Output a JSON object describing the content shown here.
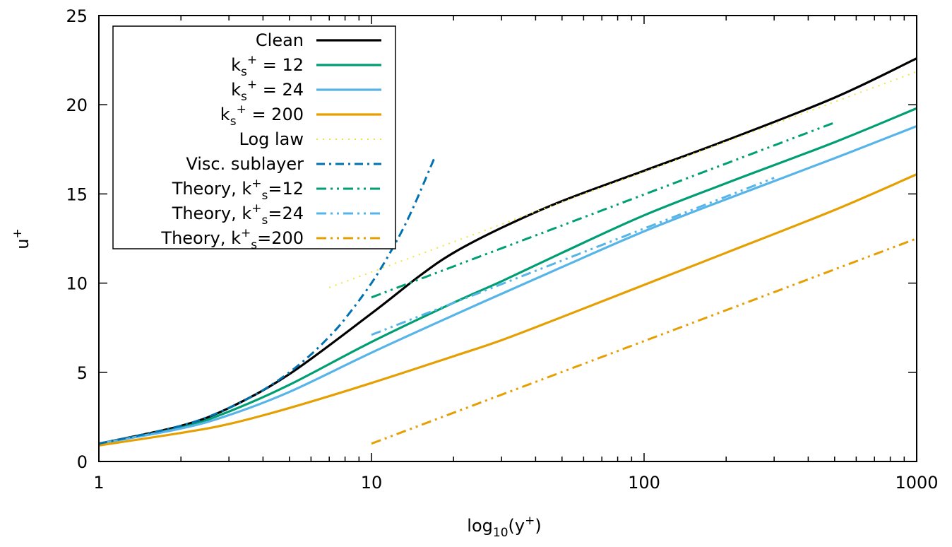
{
  "chart_data": {
    "type": "line",
    "xscale": "log",
    "xlim": [
      1,
      1000
    ],
    "ylim": [
      0,
      25
    ],
    "xlabel": "log10(y+)",
    "xlabel_parts": {
      "main": "log",
      "sub": "10",
      "tail": "(y",
      "sup": "+",
      "end": ")"
    },
    "ylabel": "u+",
    "ylabel_parts": {
      "main": "u",
      "sup": "+"
    },
    "xticks": [
      1,
      10,
      100,
      1000
    ],
    "xtick_labels": [
      "1",
      "10",
      "100",
      "1000"
    ],
    "yticks": [
      0,
      5,
      10,
      15,
      20,
      25
    ],
    "ytick_labels": [
      "0",
      "5",
      "10",
      "15",
      "20",
      "25"
    ],
    "grid": false,
    "legend_position": "top-left",
    "series": [
      {
        "name": "Clean",
        "label": {
          "pre": "Clean"
        },
        "color": "#000000",
        "style": "solid",
        "x": [
          1,
          2,
          3,
          5,
          10,
          15,
          20,
          30,
          50,
          100,
          200,
          500,
          1000
        ],
        "y": [
          1.0,
          2.0,
          3.0,
          4.9,
          8.3,
          10.4,
          11.7,
          13.1,
          14.6,
          16.3,
          18.0,
          20.4,
          22.6
        ]
      },
      {
        "name": "ks+ = 12",
        "label": {
          "pre": "k",
          "sub": "s",
          "sup": "+",
          "post": " = 12"
        },
        "color": "#009e73",
        "style": "solid",
        "x": [
          1,
          2,
          3,
          5,
          10,
          20,
          30,
          50,
          100,
          200,
          500,
          1000
        ],
        "y": [
          1.0,
          1.9,
          2.8,
          4.3,
          6.7,
          8.9,
          10.1,
          11.7,
          13.8,
          15.6,
          17.9,
          19.8
        ]
      },
      {
        "name": "ks+ = 24",
        "label": {
          "pre": "k",
          "sub": "s",
          "sup": "+",
          "post": " = 24"
        },
        "color": "#56b4e9",
        "style": "solid",
        "x": [
          1,
          2,
          3,
          5,
          10,
          20,
          30,
          50,
          100,
          200,
          500,
          1000
        ],
        "y": [
          1.0,
          1.85,
          2.6,
          3.9,
          6.1,
          8.2,
          9.4,
          10.9,
          12.9,
          14.7,
          17.0,
          18.8
        ]
      },
      {
        "name": "ks+ = 200",
        "label": {
          "pre": "k",
          "sub": "s",
          "sup": "+",
          "post": " = 200"
        },
        "color": "#e69f00",
        "style": "solid",
        "x": [
          1,
          2,
          3,
          5,
          10,
          20,
          30,
          50,
          100,
          200,
          500,
          1000
        ],
        "y": [
          0.9,
          1.6,
          2.1,
          3.0,
          4.4,
          5.9,
          6.8,
          8.1,
          9.9,
          11.7,
          14.1,
          16.1
        ]
      },
      {
        "name": "Log law",
        "label": {
          "pre": "Log law"
        },
        "color": "#f0e442",
        "style": "dotted",
        "x": [
          7,
          1000
        ],
        "y": [
          9.75,
          21.85
        ]
      },
      {
        "name": "Visc. sublayer",
        "label": {
          "pre": "Visc. sublayer"
        },
        "color": "#0072b2",
        "style": "dashdot",
        "x": [
          1,
          2,
          3,
          4,
          5,
          6,
          7,
          8,
          10,
          12,
          14,
          17
        ],
        "y": [
          1,
          2,
          3,
          4,
          5,
          6,
          7,
          8,
          10,
          12,
          14,
          17
        ]
      },
      {
        "name": "Theory, k+s=12",
        "label": {
          "pre": "Theory, k",
          "sup": "+",
          "sub": "s",
          "post": "=12",
          "order": "supsub"
        },
        "color": "#009e73",
        "style": "dashdotdot",
        "x": [
          10,
          500
        ],
        "y": [
          9.2,
          19.0
        ]
      },
      {
        "name": "Theory, k+s=24",
        "label": {
          "pre": "Theory, k",
          "sup": "+",
          "sub": "s",
          "post": "=24",
          "order": "supsub"
        },
        "color": "#56b4e9",
        "style": "dashdotdot",
        "x": [
          10,
          300
        ],
        "y": [
          7.1,
          15.9
        ]
      },
      {
        "name": "Theory, k+s=200",
        "label": {
          "pre": "Theory, k",
          "sup": "+",
          "sub": "s",
          "post": "=200",
          "order": "supsub"
        },
        "color": "#e69f00",
        "style": "dashdotdot",
        "x": [
          10,
          1000
        ],
        "y": [
          1.0,
          12.5
        ]
      }
    ]
  }
}
